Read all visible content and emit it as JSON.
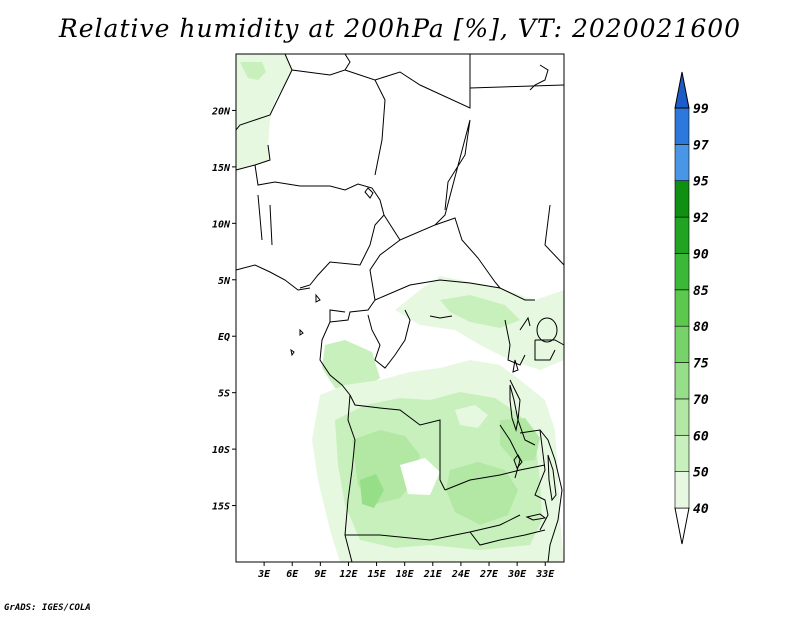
{
  "title": "Relative humidity at 200hPa [%], VT: 2020021600",
  "credit": "GrADS: IGES/COLA",
  "map": {
    "lon_range": [
      0,
      35
    ],
    "lat_range": [
      -20,
      25
    ],
    "lat_ticks": [
      {
        "value": 20,
        "label": "20N"
      },
      {
        "value": 15,
        "label": "15N"
      },
      {
        "value": 10,
        "label": "10N"
      },
      {
        "value": 5,
        "label": "5N"
      },
      {
        "value": 0,
        "label": "EQ"
      },
      {
        "value": -5,
        "label": "5S"
      },
      {
        "value": -10,
        "label": "10S"
      },
      {
        "value": -15,
        "label": "15S"
      }
    ],
    "lon_ticks": [
      {
        "value": 3,
        "label": "3E"
      },
      {
        "value": 6,
        "label": "6E"
      },
      {
        "value": 9,
        "label": "9E"
      },
      {
        "value": 12,
        "label": "12E"
      },
      {
        "value": 15,
        "label": "15E"
      },
      {
        "value": 18,
        "label": "18E"
      },
      {
        "value": 21,
        "label": "21E"
      },
      {
        "value": 24,
        "label": "24E"
      },
      {
        "value": 27,
        "label": "27E"
      },
      {
        "value": 30,
        "label": "30E"
      },
      {
        "value": 33,
        "label": "33E"
      }
    ]
  },
  "colorbar": {
    "levels": [
      {
        "label": "40",
        "color": "#e6f8e0"
      },
      {
        "label": "50",
        "color": "#c8f0bc"
      },
      {
        "label": "60",
        "color": "#b2e8a4"
      },
      {
        "label": "70",
        "color": "#96de88"
      },
      {
        "label": "75",
        "color": "#78d26a"
      },
      {
        "label": "80",
        "color": "#5cc84e"
      },
      {
        "label": "85",
        "color": "#3cb838"
      },
      {
        "label": "90",
        "color": "#20a422"
      },
      {
        "label": "92",
        "color": "#109012"
      },
      {
        "label": "95",
        "color": "#4a96e6"
      },
      {
        "label": "97",
        "color": "#2c78dc"
      },
      {
        "label": "99",
        "color": "#1c5cc8"
      }
    ],
    "top_color": "#1c5cc8",
    "bottom_color": "#ffffff"
  },
  "chart_data": {
    "type": "heatmap",
    "title": "Relative humidity at 200hPa [%], VT: 2020021600",
    "variable": "Relative humidity at 200hPa",
    "units": "%",
    "valid_time": "2020021600",
    "x_axis": "longitude (0E-35E)",
    "y_axis": "latitude (20S-25N)",
    "contour_levels": [
      40,
      50,
      60,
      70,
      75,
      80,
      85,
      90,
      92,
      95,
      97,
      99
    ]
  }
}
